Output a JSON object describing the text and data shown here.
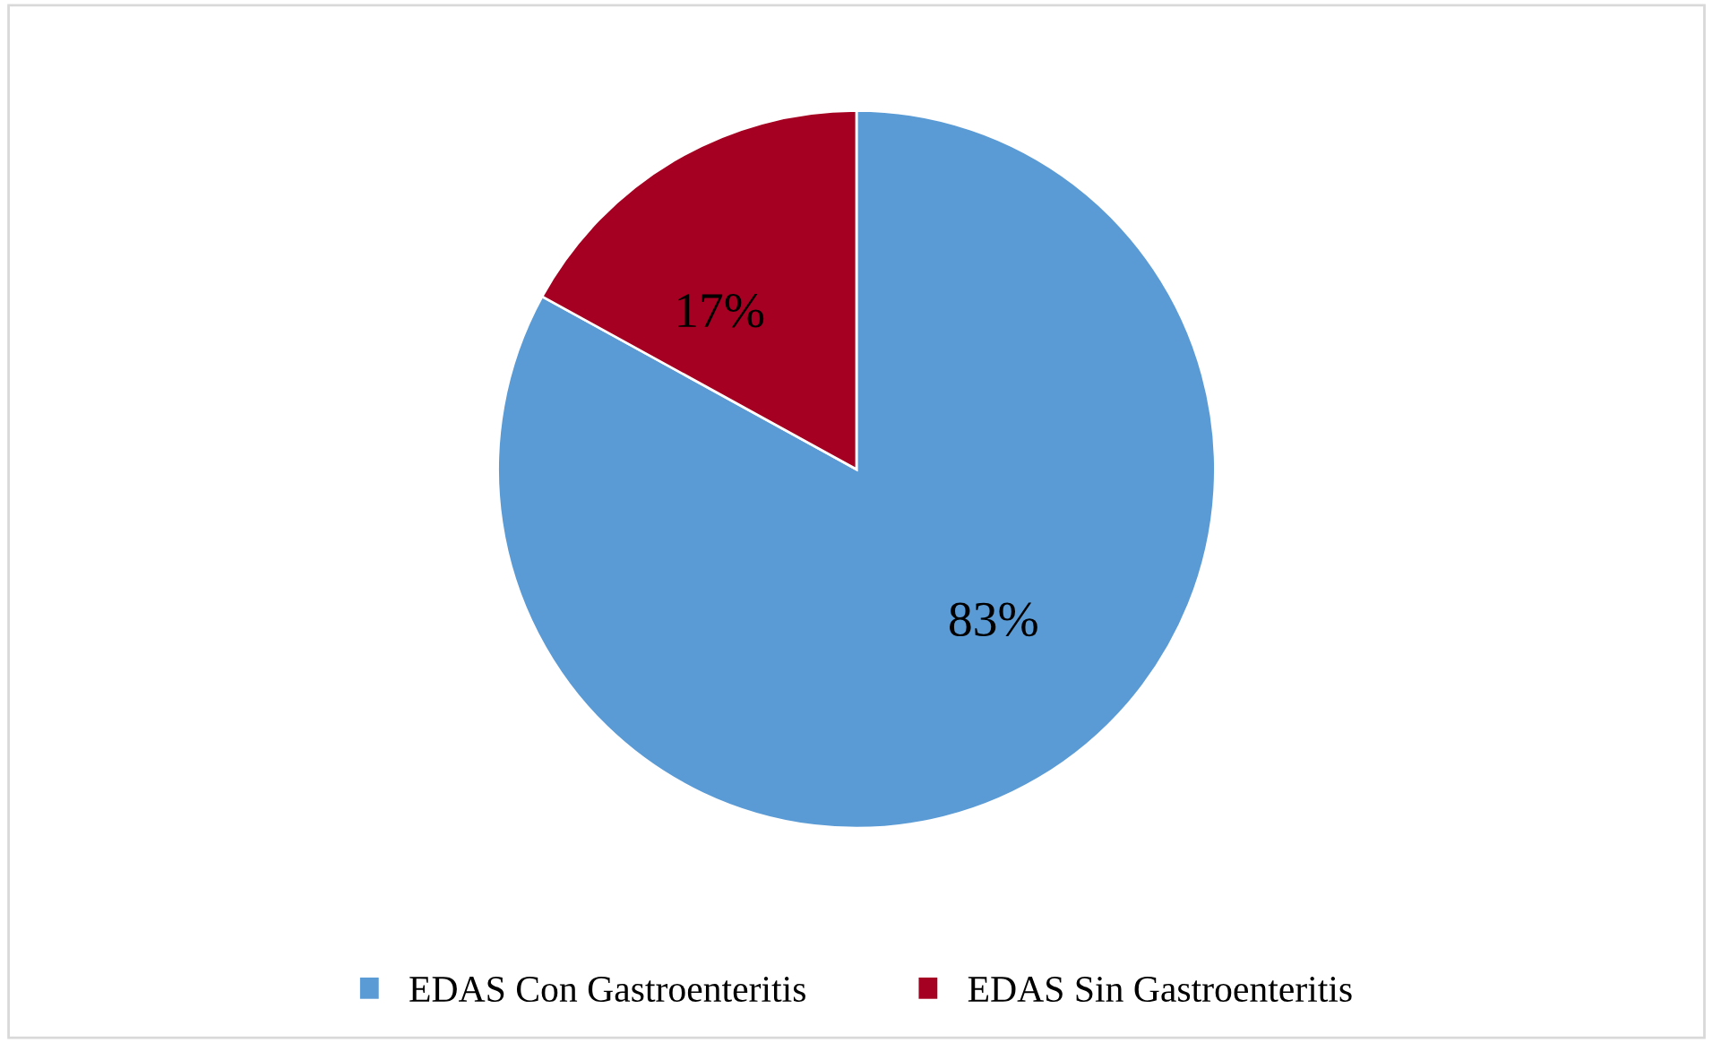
{
  "chart_data": {
    "type": "pie",
    "categories": [
      "EDAS Con Gastroenteritis",
      "EDAS Sin Gastroenteritis"
    ],
    "values": [
      83,
      17
    ],
    "colors": [
      "#5b9bd5",
      "#a50021"
    ],
    "value_labels": [
      "83%",
      "17%"
    ],
    "legend": "bottom"
  }
}
